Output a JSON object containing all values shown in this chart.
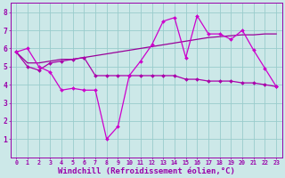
{
  "title": "",
  "xlabel": "Windchill (Refroidissement éolien,°C)",
  "background_color": "#cce8e8",
  "plot_bg_color": "#cce8e8",
  "grid_color": "#99cccc",
  "line_color_main": "#cc00cc",
  "line_color_flat": "#aa00aa",
  "line_color_diag": "#990099",
  "x": [
    0,
    1,
    2,
    3,
    4,
    5,
    6,
    7,
    8,
    9,
    10,
    11,
    12,
    13,
    14,
    15,
    16,
    17,
    18,
    19,
    20,
    21,
    22,
    23
  ],
  "y_main": [
    5.8,
    6.0,
    5.0,
    4.7,
    3.7,
    3.8,
    3.7,
    3.7,
    1.0,
    1.7,
    4.5,
    5.3,
    6.2,
    7.5,
    7.7,
    5.5,
    7.8,
    6.8,
    6.8,
    6.5,
    7.0,
    5.9,
    4.9,
    3.9
  ],
  "y_flat": [
    5.8,
    5.0,
    4.8,
    5.2,
    5.3,
    5.4,
    5.5,
    4.5,
    4.5,
    4.5,
    4.5,
    4.5,
    4.5,
    4.5,
    4.5,
    4.3,
    4.3,
    4.2,
    4.2,
    4.2,
    4.1,
    4.1,
    4.0,
    3.9
  ],
  "y_diag": [
    5.8,
    5.2,
    5.2,
    5.3,
    5.4,
    5.4,
    5.5,
    5.6,
    5.7,
    5.8,
    5.9,
    6.0,
    6.1,
    6.2,
    6.3,
    6.4,
    6.5,
    6.6,
    6.65,
    6.7,
    6.75,
    6.75,
    6.8,
    6.8
  ],
  "ylim": [
    0,
    8.5
  ],
  "xlim": [
    -0.5,
    23.5
  ],
  "yticks": [
    1,
    2,
    3,
    4,
    5,
    6,
    7,
    8
  ],
  "xticks": [
    0,
    1,
    2,
    3,
    4,
    5,
    6,
    7,
    8,
    9,
    10,
    11,
    12,
    13,
    14,
    15,
    16,
    17,
    18,
    19,
    20,
    21,
    22,
    23
  ],
  "tick_color": "#9900aa",
  "tick_fontsize": 4.8,
  "xlabel_fontsize": 6.5
}
